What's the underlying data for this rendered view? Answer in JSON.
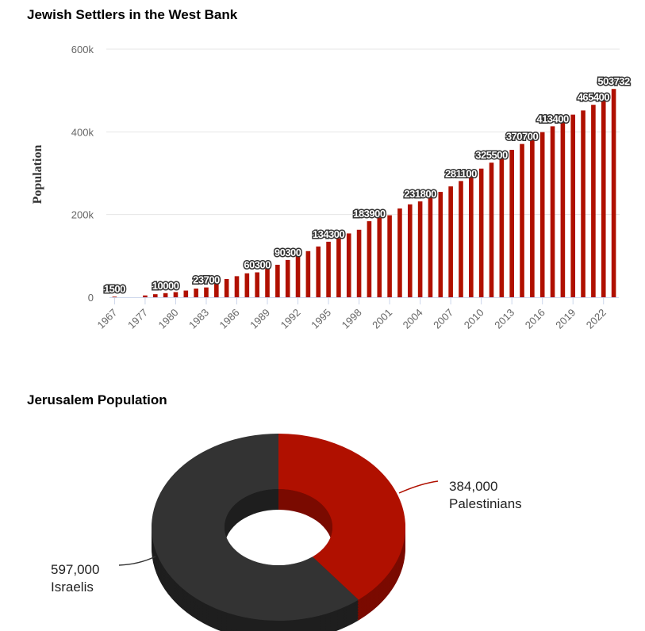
{
  "chart_data": [
    {
      "type": "bar",
      "title": "Jewish Settlers in the West Bank",
      "xlabel": "",
      "ylabel": "Population",
      "ylim": [
        0,
        600000
      ],
      "yticks": [
        0,
        200000,
        400000,
        600000
      ],
      "ytick_labels": [
        "0",
        "200k",
        "400k",
        "600k"
      ],
      "color": "#b01000",
      "categories": [
        1967,
        1977,
        1978,
        1979,
        1980,
        1981,
        1982,
        1983,
        1984,
        1985,
        1986,
        1987,
        1988,
        1989,
        1990,
        1991,
        1992,
        1993,
        1994,
        1995,
        1996,
        1997,
        1998,
        1999,
        2000,
        2001,
        2002,
        2003,
        2004,
        2005,
        2006,
        2007,
        2008,
        2009,
        2010,
        2011,
        2012,
        2013,
        2014,
        2015,
        2016,
        2017,
        2018,
        2019,
        2020,
        2021,
        2022,
        2023
      ],
      "values": [
        1500,
        4400,
        7400,
        10000,
        12500,
        16200,
        21000,
        23700,
        35300,
        44100,
        51000,
        57900,
        60300,
        69800,
        78600,
        90300,
        100500,
        111600,
        122700,
        134300,
        142700,
        154400,
        163300,
        183900,
        192900,
        198300,
        214700,
        224700,
        231800,
        244200,
        254800,
        268100,
        281100,
        296700,
        311100,
        325500,
        341400,
        356500,
        370700,
        385900,
        399300,
        413400,
        427800,
        441600,
        451700,
        465400,
        480000,
        503732
      ],
      "labeled_points": [
        0,
        3,
        7,
        12,
        15,
        19,
        23,
        28,
        32,
        35,
        38,
        41,
        45,
        47
      ],
      "xtick_labels": [
        "1967",
        "1977",
        "1980",
        "1983",
        "1986",
        "1989",
        "1992",
        "1995",
        "1998",
        "2001",
        "2004",
        "2007",
        "2010",
        "2013",
        "2016",
        "2019",
        "2022"
      ],
      "grid": true
    },
    {
      "type": "pie",
      "title": "Jerusalem Population",
      "donut": true,
      "slices": [
        {
          "label": "Palestinians",
          "value": 384000,
          "value_label": "384,000",
          "color": "#b01000"
        },
        {
          "label": "Israelis",
          "value": 597000,
          "value_label": "597,000",
          "color": "#333333"
        }
      ]
    }
  ]
}
